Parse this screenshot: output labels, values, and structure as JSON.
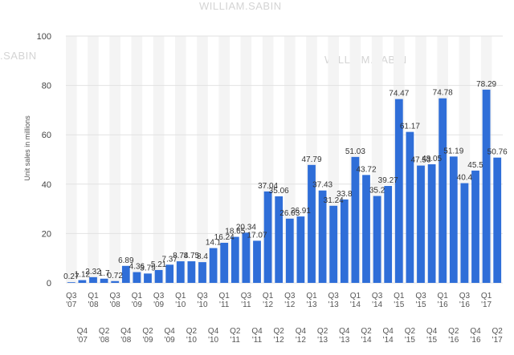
{
  "watermarks": [
    "WILLIAM.SABIN",
    ".SABIN",
    "WILLIAM.SABIN"
  ],
  "colors": {
    "bar": "#2f6ed8",
    "band": "#f4f4f4",
    "grid": "#e2e2e2"
  },
  "chart_data": {
    "type": "bar",
    "title": "",
    "xlabel": "",
    "ylabel": "Unit sales in millions",
    "ylim": [
      0,
      100
    ],
    "yticks": [
      0,
      20,
      40,
      60,
      80,
      100
    ],
    "grid": true,
    "categories": [
      "Q3 '07",
      "Q4 '07",
      "Q1 '08",
      "Q2 '08",
      "Q3 '08",
      "Q4 '08",
      "Q1 '09",
      "Q2 '09",
      "Q3 '09",
      "Q4 '09",
      "Q1 '10",
      "Q2 '10",
      "Q3 '10",
      "Q4 '10",
      "Q1 '11",
      "Q2 '11",
      "Q3 '11",
      "Q4 '11",
      "Q1 '12",
      "Q2 '12",
      "Q3 '12",
      "Q4 '12",
      "Q1 '13",
      "Q2 '13",
      "Q3 '13",
      "Q4 '13",
      "Q1 '14",
      "Q2 '14",
      "Q3 '14",
      "Q4 '14",
      "Q1 '15",
      "Q2 '15",
      "Q3 '15",
      "Q4 '15",
      "Q1 '16",
      "Q2 '16",
      "Q3 '16",
      "Q4 '16",
      "Q1 '17",
      "Q2 '17"
    ],
    "values": [
      0.27,
      1.12,
      2.32,
      1.7,
      0.72,
      6.89,
      4.36,
      3.79,
      5.21,
      7.37,
      8.74,
      8.75,
      8.4,
      14.1,
      16.24,
      18.65,
      20.34,
      17.07,
      37.04,
      35.06,
      26.03,
      26.91,
      47.79,
      37.43,
      31.24,
      33.8,
      51.03,
      43.72,
      35.2,
      39.27,
      74.47,
      61.17,
      47.53,
      48.05,
      74.78,
      51.19,
      40.4,
      45.5,
      78.29,
      50.76
    ],
    "value_labels": [
      "0.27",
      "1.12",
      "2.32",
      "1.7",
      "0.72",
      "6.89",
      "4.36",
      "3.79",
      "5.21",
      "7.37",
      "8.74",
      "8.75",
      "8.4",
      "14.1",
      "16.24",
      "18.65",
      "20.34",
      "17.07",
      "37.04",
      "35.06",
      "26.03",
      "26.91",
      "47.79",
      "37.43",
      "31.24",
      "33.8",
      "51.03",
      "43.72",
      "35.2",
      "39.27",
      "74.47",
      "61.17",
      "47.53",
      "48.05",
      "74.78",
      "51.19",
      "40.4",
      "45.5",
      "78.29",
      "50.76"
    ]
  }
}
